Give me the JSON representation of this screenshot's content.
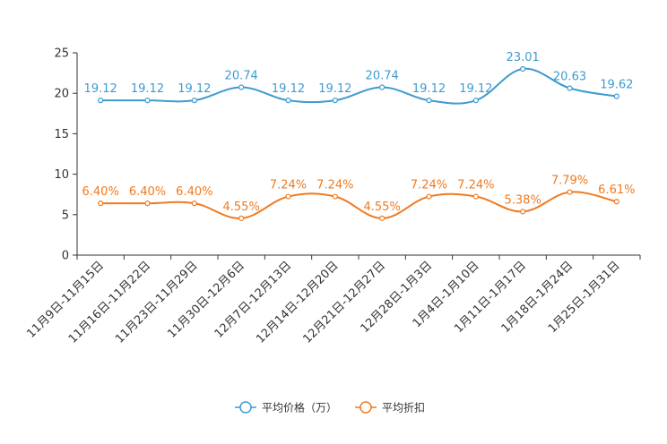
{
  "chart_data": {
    "type": "line",
    "categories": [
      "11月9日-11月15日",
      "11月16日-11月22日",
      "11月23日-11月29日",
      "11月30日-12月6日",
      "12月7日-12月13日",
      "12月14日-12月20日",
      "12月21日-12月27日",
      "12月28日-1月3日",
      "1月4日-1月10日",
      "1月11日-1月17日",
      "1月18日-1月24日",
      "1月25日-1月31日"
    ],
    "ylim": [
      0,
      25
    ],
    "yticks": [
      0,
      5,
      10,
      15,
      20,
      25
    ],
    "series": [
      {
        "name": "平均价格（万）",
        "color": "#3d9bd1",
        "values": [
          19.12,
          19.12,
          19.12,
          20.74,
          19.12,
          19.12,
          20.74,
          19.12,
          19.12,
          23.01,
          20.63,
          19.62
        ],
        "labels": [
          "19.12",
          "19.12",
          "19.12",
          "20.74",
          "19.12",
          "19.12",
          "20.74",
          "19.12",
          "19.12",
          "23.01",
          "20.63",
          "19.62"
        ]
      },
      {
        "name": "平均折扣",
        "color": "#f07a1f",
        "values": [
          6.4,
          6.4,
          6.4,
          4.55,
          7.24,
          7.24,
          4.55,
          7.24,
          7.24,
          5.38,
          7.79,
          6.61
        ],
        "labels": [
          "6.40%",
          "6.40%",
          "6.40%",
          "4.55%",
          "7.24%",
          "7.24%",
          "4.55%",
          "7.24%",
          "7.24%",
          "5.38%",
          "7.79%",
          "6.61%"
        ]
      }
    ],
    "legend_position": "bottom-center",
    "title": "",
    "xlabel": "",
    "ylabel": ""
  }
}
